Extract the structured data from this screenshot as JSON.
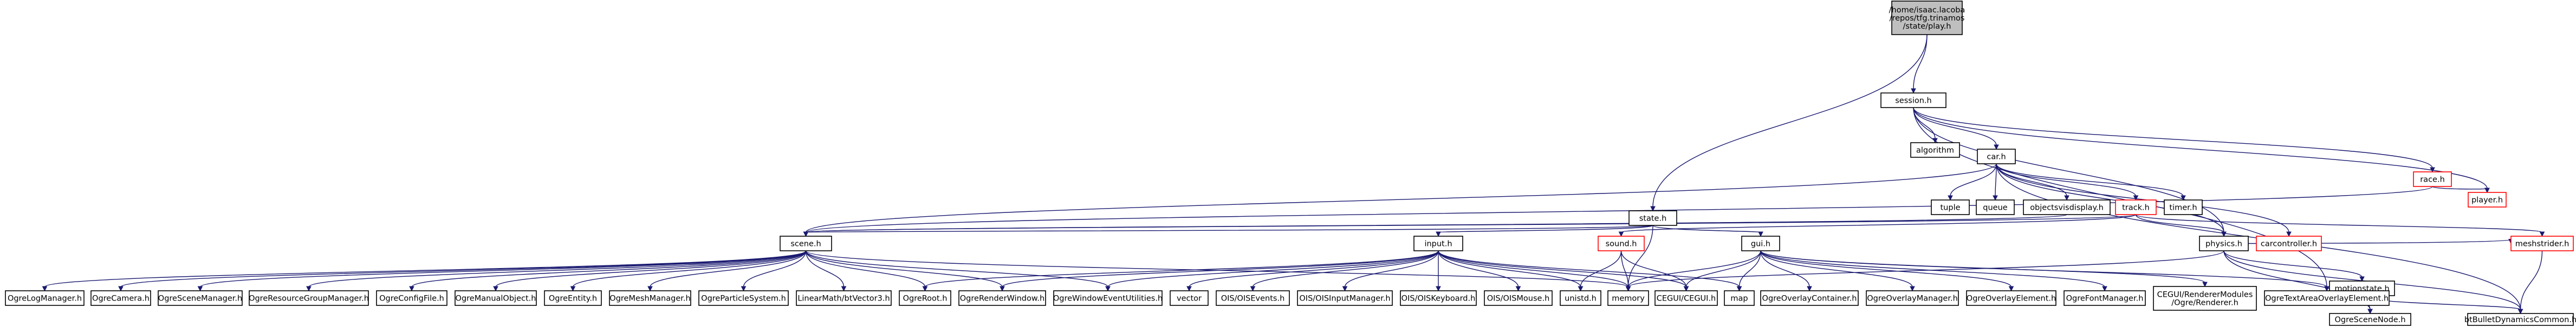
{
  "diagram": {
    "nodes": [
      {
        "id": "root",
        "label": "/home/isaac.lacoba/repos/tfg.trinamos/state/play.h",
        "lines": [
          "/home/isaac.lacoba",
          "/repos/tfg.trinamos",
          "/state/play.h"
        ],
        "style": "root"
      },
      {
        "id": "session",
        "label": "session.h",
        "style": "normal"
      },
      {
        "id": "state",
        "label": "state.h",
        "style": "normal"
      },
      {
        "id": "algorithm",
        "label": "algorithm",
        "style": "plain"
      },
      {
        "id": "car",
        "label": "car.h",
        "style": "normal"
      },
      {
        "id": "race",
        "label": "race.h",
        "style": "red"
      },
      {
        "id": "player",
        "label": "player.h",
        "style": "red"
      },
      {
        "id": "tuple",
        "label": "tuple",
        "style": "plain"
      },
      {
        "id": "queue",
        "label": "queue",
        "style": "plain"
      },
      {
        "id": "objectsvisdisplay",
        "label": "objectsvisdisplay.h",
        "style": "normal"
      },
      {
        "id": "track",
        "label": "track.h",
        "style": "red"
      },
      {
        "id": "timer",
        "label": "timer.h",
        "style": "plain"
      },
      {
        "id": "physics",
        "label": "physics.h",
        "style": "normal"
      },
      {
        "id": "carcontroller",
        "label": "carcontroller.h",
        "style": "red"
      },
      {
        "id": "scene",
        "label": "scene.h",
        "style": "normal"
      },
      {
        "id": "input",
        "label": "input.h",
        "style": "normal"
      },
      {
        "id": "sound",
        "label": "sound.h",
        "style": "red"
      },
      {
        "id": "gui",
        "label": "gui.h",
        "style": "normal"
      },
      {
        "id": "motionstate",
        "label": "motionstate.h",
        "style": "normal"
      },
      {
        "id": "meshstrider",
        "label": "meshstrider.h",
        "style": "red"
      },
      {
        "id": "OgreLogManager",
        "label": "OgreLogManager.h",
        "style": "plain"
      },
      {
        "id": "OgreCamera",
        "label": "OgreCamera.h",
        "style": "plain"
      },
      {
        "id": "OgreSceneManager",
        "label": "OgreSceneManager.h",
        "style": "plain"
      },
      {
        "id": "OgreResourceGroupManager",
        "label": "OgreResourceGroupManager.h",
        "style": "plain"
      },
      {
        "id": "OgreConfigFile",
        "label": "OgreConfigFile.h",
        "style": "plain"
      },
      {
        "id": "OgreManualObject",
        "label": "OgreManualObject.h",
        "style": "plain"
      },
      {
        "id": "OgreEntity",
        "label": "OgreEntity.h",
        "style": "plain"
      },
      {
        "id": "OgreMeshManager",
        "label": "OgreMeshManager.h",
        "style": "plain"
      },
      {
        "id": "OgreParticleSystem",
        "label": "OgreParticleSystem.h",
        "style": "plain"
      },
      {
        "id": "LinearMath",
        "label": "LinearMath/btVector3.h",
        "style": "plain"
      },
      {
        "id": "OgreRoot",
        "label": "OgreRoot.h",
        "style": "plain"
      },
      {
        "id": "OgreRenderWindow",
        "label": "OgreRenderWindow.h",
        "style": "plain"
      },
      {
        "id": "OgreWindowEventUtilities",
        "label": "OgreWindowEventUtilities.h",
        "style": "plain"
      },
      {
        "id": "vector",
        "label": "vector",
        "style": "plain"
      },
      {
        "id": "OISEvents",
        "label": "OIS/OISEvents.h",
        "style": "plain"
      },
      {
        "id": "OISInputManager",
        "label": "OIS/OISInputManager.h",
        "style": "plain"
      },
      {
        "id": "OISKeyboard",
        "label": "OIS/OISKeyboard.h",
        "style": "plain"
      },
      {
        "id": "OISMouse",
        "label": "OIS/OISMouse.h",
        "style": "plain"
      },
      {
        "id": "unistd",
        "label": "unistd.h",
        "style": "plain"
      },
      {
        "id": "memory",
        "label": "memory",
        "style": "plain"
      },
      {
        "id": "CEGUI",
        "label": "CEGUI/CEGUI.h",
        "style": "plain"
      },
      {
        "id": "map",
        "label": "map",
        "style": "plain"
      },
      {
        "id": "OgreOverlayContainer",
        "label": "OgreOverlayContainer.h",
        "style": "plain"
      },
      {
        "id": "OgreOverlayManager",
        "label": "OgreOverlayManager.h",
        "style": "plain"
      },
      {
        "id": "OgreOverlayElement",
        "label": "OgreOverlayElement.h",
        "style": "plain"
      },
      {
        "id": "OgreFontManager",
        "label": "OgreFontManager.h",
        "style": "plain"
      },
      {
        "id": "CEGUIRenderer",
        "label": "CEGUI/RendererModules/Ogre/Renderer.h",
        "lines": [
          "CEGUI/RendererModules",
          "/Ogre/Renderer.h"
        ],
        "style": "plain"
      },
      {
        "id": "OgreTextAreaOverlayElement",
        "label": "OgreTextAreaOverlayElement.h",
        "style": "plain"
      },
      {
        "id": "OgreSceneNode",
        "label": "OgreSceneNode.h",
        "style": "plain"
      },
      {
        "id": "btBulletDynamicsCommon",
        "label": "btBulletDynamicsCommon.h",
        "style": "plain"
      }
    ],
    "edges": [
      [
        "root",
        "session"
      ],
      [
        "root",
        "state"
      ],
      [
        "session",
        "algorithm"
      ],
      [
        "session",
        "car"
      ],
      [
        "session",
        "race"
      ],
      [
        "session",
        "player"
      ],
      [
        "session",
        "physics"
      ],
      [
        "session",
        "OgreTextAreaOverlayElement"
      ],
      [
        "state",
        "scene"
      ],
      [
        "state",
        "input"
      ],
      [
        "state",
        "gui"
      ],
      [
        "state",
        "memory"
      ],
      [
        "car",
        "tuple"
      ],
      [
        "car",
        "queue"
      ],
      [
        "car",
        "objectsvisdisplay"
      ],
      [
        "car",
        "track"
      ],
      [
        "car",
        "timer"
      ],
      [
        "car",
        "physics"
      ],
      [
        "car",
        "carcontroller"
      ],
      [
        "car",
        "scene"
      ],
      [
        "car",
        "btBulletDynamicsCommon"
      ],
      [
        "race",
        "player"
      ],
      [
        "race",
        "scene"
      ],
      [
        "track",
        "scene"
      ],
      [
        "track",
        "physics"
      ],
      [
        "track",
        "meshstrider"
      ],
      [
        "track",
        "sound"
      ],
      [
        "objectsvisdisplay",
        "scene"
      ],
      [
        "physics",
        "motionstate"
      ],
      [
        "physics",
        "meshstrider"
      ],
      [
        "physics",
        "btBulletDynamicsCommon"
      ],
      [
        "physics",
        "OgreSceneNode"
      ],
      [
        "physics",
        "memory"
      ],
      [
        "scene",
        "OgreLogManager"
      ],
      [
        "scene",
        "OgreCamera"
      ],
      [
        "scene",
        "OgreSceneManager"
      ],
      [
        "scene",
        "OgreResourceGroupManager"
      ],
      [
        "scene",
        "OgreConfigFile"
      ],
      [
        "scene",
        "OgreManualObject"
      ],
      [
        "scene",
        "OgreEntity"
      ],
      [
        "scene",
        "OgreMeshManager"
      ],
      [
        "scene",
        "OgreParticleSystem"
      ],
      [
        "scene",
        "LinearMath"
      ],
      [
        "scene",
        "OgreRoot"
      ],
      [
        "scene",
        "OgreRenderWindow"
      ],
      [
        "scene",
        "OgreWindowEventUtilities"
      ],
      [
        "scene",
        "memory"
      ],
      [
        "input",
        "OgreRoot"
      ],
      [
        "input",
        "OgreRenderWindow"
      ],
      [
        "input",
        "OgreWindowEventUtilities"
      ],
      [
        "input",
        "vector"
      ],
      [
        "input",
        "OISEvents"
      ],
      [
        "input",
        "OISInputManager"
      ],
      [
        "input",
        "OISKeyboard"
      ],
      [
        "input",
        "OISMouse"
      ],
      [
        "input",
        "unistd"
      ],
      [
        "input",
        "memory"
      ],
      [
        "input",
        "CEGUI"
      ],
      [
        "input",
        "map"
      ],
      [
        "sound",
        "unistd"
      ],
      [
        "sound",
        "memory"
      ],
      [
        "sound",
        "CEGUI"
      ],
      [
        "gui",
        "OgreOverlayContainer"
      ],
      [
        "gui",
        "OgreOverlayManager"
      ],
      [
        "gui",
        "OgreOverlayElement"
      ],
      [
        "gui",
        "OgreFontManager"
      ],
      [
        "gui",
        "CEGUIRenderer"
      ],
      [
        "gui",
        "OgreTextAreaOverlayElement"
      ],
      [
        "gui",
        "CEGUI"
      ],
      [
        "gui",
        "map"
      ],
      [
        "gui",
        "memory"
      ],
      [
        "motionstate",
        "OgreSceneNode"
      ],
      [
        "motionstate",
        "btBulletDynamicsCommon"
      ],
      [
        "meshstrider",
        "btBulletDynamicsCommon"
      ]
    ]
  }
}
